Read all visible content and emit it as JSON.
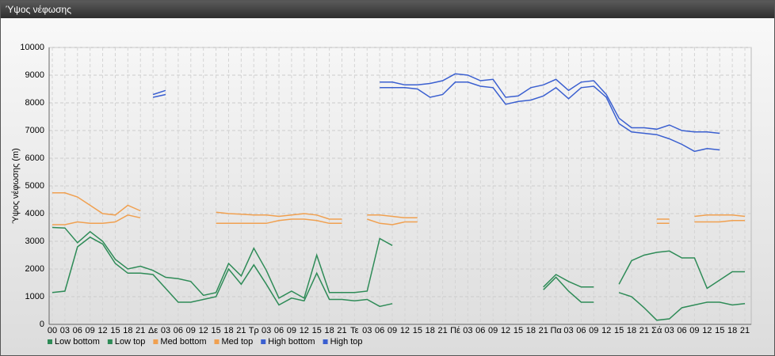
{
  "window_title": "Ύψος νέφωσης",
  "chart_data": {
    "type": "line",
    "ylabel": "Ύψος νέφωσης (m)",
    "categories": [
      "00",
      "03",
      "06",
      "09",
      "12",
      "15",
      "18",
      "21",
      "Δε",
      "03",
      "06",
      "09",
      "12",
      "15",
      "18",
      "21",
      "Τρ",
      "03",
      "06",
      "09",
      "12",
      "15",
      "18",
      "21",
      "Τε",
      "03",
      "06",
      "09",
      "12",
      "15",
      "18",
      "21",
      "Πέ",
      "03",
      "06",
      "09",
      "12",
      "15",
      "18",
      "21",
      "Πα",
      "03",
      "06",
      "09",
      "12",
      "15",
      "18",
      "21",
      "Σά",
      "03",
      "06",
      "09",
      "12",
      "15",
      "18",
      "21"
    ],
    "ylim": [
      0,
      10000
    ],
    "yticks": [
      0,
      1000,
      2000,
      3000,
      4000,
      5000,
      6000,
      7000,
      8000,
      9000,
      10000
    ],
    "grid": true,
    "legend": "bottom-left",
    "series": [
      {
        "name": "Low bottom",
        "color": "#2e8b57",
        "values": [
          1150,
          1200,
          2800,
          3150,
          2900,
          2200,
          1850,
          1850,
          1800,
          1300,
          800,
          800,
          900,
          1000,
          2000,
          1450,
          2150,
          1450,
          700,
          950,
          850,
          1850,
          900,
          900,
          850,
          900,
          650,
          750,
          null,
          null,
          null,
          null,
          null,
          null,
          null,
          null,
          null,
          null,
          null,
          1250,
          1700,
          1200,
          800,
          800,
          null,
          1150,
          1000,
          600,
          150,
          200,
          600,
          700,
          800,
          800,
          700,
          750
        ]
      },
      {
        "name": "Low top",
        "color": "#2e8b57",
        "values": [
          3500,
          3480,
          2950,
          3350,
          3000,
          2350,
          2000,
          2100,
          1950,
          1700,
          1650,
          1550,
          1050,
          1150,
          2200,
          1750,
          2750,
          1950,
          950,
          1200,
          950,
          2500,
          1150,
          1150,
          1150,
          1200,
          3100,
          2850,
          null,
          null,
          null,
          null,
          null,
          null,
          null,
          null,
          null,
          null,
          null,
          1350,
          1800,
          1550,
          1350,
          1350,
          null,
          1450,
          2300,
          2500,
          2600,
          2650,
          2400,
          2400,
          1300,
          1600,
          1900,
          1900
        ]
      },
      {
        "name": "Med bottom",
        "color": "#f0a050",
        "values": [
          3600,
          3600,
          3700,
          3650,
          3650,
          3700,
          3950,
          3850,
          null,
          null,
          null,
          null,
          null,
          3650,
          3650,
          3650,
          3650,
          3650,
          3750,
          3800,
          3800,
          3750,
          3650,
          3650,
          null,
          3800,
          3650,
          3600,
          3700,
          3700,
          null,
          null,
          null,
          null,
          null,
          null,
          null,
          null,
          null,
          null,
          null,
          null,
          null,
          null,
          null,
          null,
          null,
          null,
          3650,
          3650,
          null,
          3700,
          3700,
          3700,
          3750,
          3750
        ]
      },
      {
        "name": "Med top",
        "color": "#f0a050",
        "values": [
          4750,
          4750,
          4600,
          4300,
          4000,
          3950,
          4300,
          4100,
          null,
          null,
          null,
          null,
          null,
          4050,
          4000,
          3980,
          3950,
          3950,
          3900,
          3950,
          4000,
          3950,
          3800,
          3800,
          null,
          3950,
          3950,
          3900,
          3850,
          3850,
          null,
          null,
          null,
          null,
          null,
          null,
          null,
          null,
          null,
          null,
          null,
          null,
          null,
          null,
          null,
          null,
          null,
          null,
          3800,
          3800,
          null,
          3900,
          3950,
          3950,
          3950,
          3900
        ]
      },
      {
        "name": "High bottom",
        "color": "#3a5fd0",
        "values": [
          null,
          null,
          null,
          null,
          null,
          null,
          null,
          null,
          8200,
          8300,
          null,
          null,
          null,
          null,
          null,
          null,
          null,
          null,
          null,
          null,
          null,
          null,
          null,
          null,
          null,
          null,
          8550,
          8550,
          8550,
          8500,
          8200,
          8300,
          8750,
          8750,
          8600,
          8550,
          7950,
          8050,
          8100,
          8250,
          8550,
          8150,
          8550,
          8600,
          8200,
          7250,
          6950,
          6900,
          6850,
          6700,
          6500,
          6250,
          6350,
          6300,
          null,
          null
        ]
      },
      {
        "name": "High top",
        "color": "#3a5fd0",
        "values": [
          null,
          null,
          null,
          null,
          null,
          null,
          null,
          null,
          8300,
          8450,
          null,
          null,
          null,
          null,
          null,
          null,
          null,
          null,
          null,
          null,
          null,
          null,
          null,
          null,
          null,
          null,
          8750,
          8750,
          8650,
          8650,
          8700,
          8800,
          9050,
          9000,
          8800,
          8850,
          8200,
          8250,
          8550,
          8650,
          8850,
          8450,
          8750,
          8800,
          8300,
          7450,
          7100,
          7100,
          7050,
          7200,
          7000,
          6950,
          6950,
          6900,
          null,
          null
        ]
      }
    ]
  }
}
